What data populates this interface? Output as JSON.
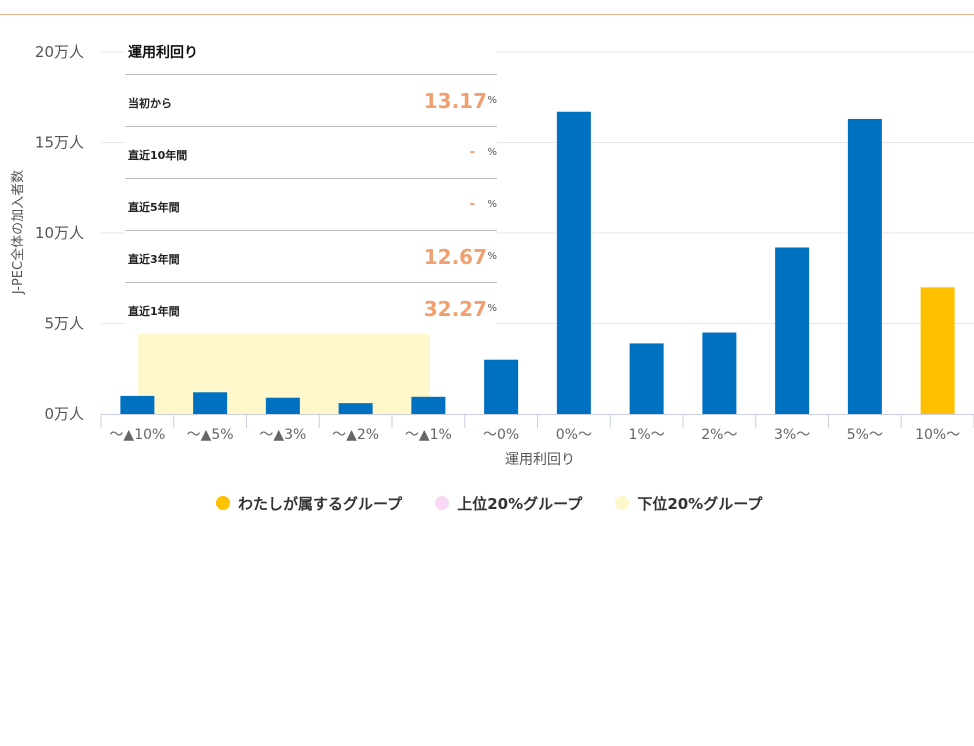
{
  "chart_data": {
    "type": "bar",
    "categories": [
      "〜▲10%",
      "〜▲5%",
      "〜▲3%",
      "〜▲2%",
      "〜▲1%",
      "〜0%",
      "0%〜",
      "1%〜",
      "2%〜",
      "3%〜",
      "5%〜",
      "10%〜"
    ],
    "values": [
      1.0,
      1.2,
      0.9,
      0.6,
      0.95,
      3.0,
      16.7,
      3.9,
      4.5,
      9.2,
      16.3,
      7.0
    ],
    "xlabel": "運用利回り",
    "ylabel": "J-PEC全体の加入者数",
    "ylim": [
      0,
      20
    ],
    "yticks": [
      0,
      5,
      10,
      15,
      20
    ],
    "ytick_labels": [
      "0万人",
      "5万人",
      "10万人",
      "15万人",
      "20万人"
    ],
    "grid": true,
    "highlight": {
      "category": "10%〜",
      "group": "わたしが属するグループ"
    },
    "bottom_band": {
      "from": "〜▲10%",
      "to": "〜▲1%",
      "group": "下位20%グループ"
    },
    "legend_position": "bottom",
    "colors": {
      "bar": "#0070c0",
      "mine": "#ffc000",
      "top20": "#f8d8f4",
      "bottom20": "#fff8cc"
    }
  },
  "panel": {
    "title": "運用利回り",
    "rows": [
      {
        "label": "当初から",
        "value": "13.17",
        "unit": "%"
      },
      {
        "label": "直近10年間",
        "value": "-",
        "unit": "%"
      },
      {
        "label": "直近5年間",
        "value": "-",
        "unit": "%"
      },
      {
        "label": "直近3年間",
        "value": "12.67",
        "unit": "%"
      },
      {
        "label": "直近1年間",
        "value": "32.27",
        "unit": "%"
      }
    ]
  },
  "legend": [
    {
      "label": "わたしが属するグループ",
      "color": "#ffc000"
    },
    {
      "label": "上位20%グループ",
      "color": "#f8d8f4"
    },
    {
      "label": "下位20%グループ",
      "color": "#fff8cc"
    }
  ]
}
